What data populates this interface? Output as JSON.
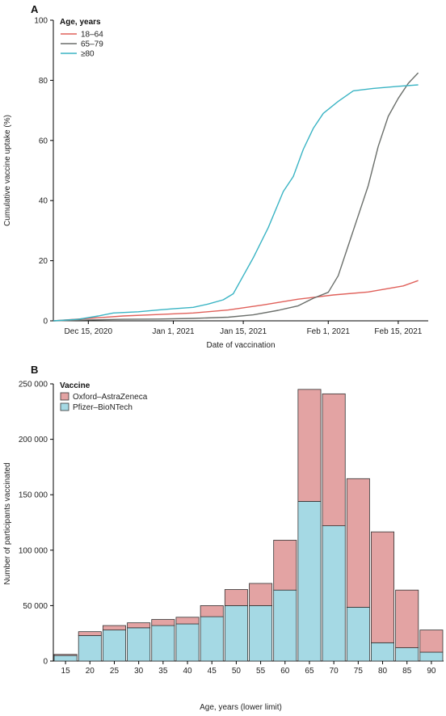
{
  "chart_data": [
    {
      "panel": "A",
      "type": "line",
      "xlabel": "Date of vaccination",
      "ylabel": "Cumulative vaccine uptake (%)",
      "xlim": [
        "2020-12-08",
        "2021-02-21"
      ],
      "ylim": [
        0,
        100
      ],
      "x_ticks": [
        {
          "date": "2020-12-15",
          "label": "Dec 15, 2020"
        },
        {
          "date": "2021-01-01",
          "label": "Jan 1, 2021"
        },
        {
          "date": "2021-01-15",
          "label": "Jan 15, 2021"
        },
        {
          "date": "2021-02-01",
          "label": "Feb 1, 2021"
        },
        {
          "date": "2021-02-15",
          "label": "Feb 15, 2021"
        }
      ],
      "y_ticks": [
        0,
        20,
        40,
        60,
        80,
        100
      ],
      "legend": {
        "title": "Age, years",
        "position": "top-left"
      },
      "series": [
        {
          "name": "18–64",
          "color": "#e0605a",
          "points": [
            [
              "2020-12-08",
              0
            ],
            [
              "2020-12-15",
              0.8
            ],
            [
              "2020-12-22",
              1.6
            ],
            [
              "2020-12-29",
              2.1
            ],
            [
              "2021-01-05",
              2.6
            ],
            [
              "2021-01-12",
              3.6
            ],
            [
              "2021-01-19",
              5.3
            ],
            [
              "2021-01-26",
              7.2
            ],
            [
              "2021-02-02",
              8.6
            ],
            [
              "2021-02-09",
              9.6
            ],
            [
              "2021-02-16",
              11.6
            ],
            [
              "2021-02-19",
              13.4
            ]
          ]
        },
        {
          "name": "65–79",
          "color": "#6b6f6b",
          "points": [
            [
              "2020-12-08",
              0
            ],
            [
              "2020-12-15",
              0.3
            ],
            [
              "2020-12-22",
              0.5
            ],
            [
              "2020-12-29",
              0.6
            ],
            [
              "2021-01-05",
              0.8
            ],
            [
              "2021-01-12",
              1.2
            ],
            [
              "2021-01-17",
              2
            ],
            [
              "2021-01-22",
              3.5
            ],
            [
              "2021-01-26",
              5
            ],
            [
              "2021-01-29",
              7.5
            ],
            [
              "2021-02-01",
              9.5
            ],
            [
              "2021-02-03",
              15
            ],
            [
              "2021-02-05",
              25
            ],
            [
              "2021-02-07",
              35
            ],
            [
              "2021-02-09",
              45
            ],
            [
              "2021-02-11",
              58
            ],
            [
              "2021-02-13",
              68
            ],
            [
              "2021-02-15",
              74
            ],
            [
              "2021-02-17",
              79
            ],
            [
              "2021-02-19",
              82.5
            ]
          ]
        },
        {
          "name": "≥80",
          "color": "#3ab4c4",
          "points": [
            [
              "2020-12-08",
              0
            ],
            [
              "2020-12-13",
              0.5
            ],
            [
              "2020-12-17",
              1.6
            ],
            [
              "2020-12-20",
              2.6
            ],
            [
              "2020-12-25",
              3
            ],
            [
              "2020-12-29",
              3.6
            ],
            [
              "2021-01-01",
              4
            ],
            [
              "2021-01-05",
              4.5
            ],
            [
              "2021-01-08",
              5.6
            ],
            [
              "2021-01-11",
              7
            ],
            [
              "2021-01-13",
              9
            ],
            [
              "2021-01-15",
              15
            ],
            [
              "2021-01-17",
              21
            ],
            [
              "2021-01-20",
              31
            ],
            [
              "2021-01-23",
              43
            ],
            [
              "2021-01-25",
              48
            ],
            [
              "2021-01-27",
              57
            ],
            [
              "2021-01-29",
              64
            ],
            [
              "2021-01-31",
              69
            ],
            [
              "2021-02-03",
              73
            ],
            [
              "2021-02-06",
              76.5
            ],
            [
              "2021-02-10",
              77.3
            ],
            [
              "2021-02-15",
              78
            ],
            [
              "2021-02-19",
              78.5
            ]
          ]
        }
      ]
    },
    {
      "panel": "B",
      "type": "bar",
      "stacked": true,
      "xlabel": "Age, years (lower limit)",
      "ylabel": "Number of participants vaccinated",
      "ylim": [
        0,
        250000
      ],
      "y_ticks": [
        {
          "value": 0,
          "label": "0"
        },
        {
          "value": 50000,
          "label": "50 000"
        },
        {
          "value": 100000,
          "label": "100 000"
        },
        {
          "value": 150000,
          "label": "150 000"
        },
        {
          "value": 200000,
          "label": "200 000"
        },
        {
          "value": 250000,
          "label": "250 000"
        }
      ],
      "categories": [
        "15",
        "20",
        "25",
        "30",
        "35",
        "40",
        "45",
        "50",
        "55",
        "60",
        "65",
        "70",
        "75",
        "80",
        "85",
        "90"
      ],
      "legend": {
        "title": "Vaccine",
        "position": "top-left"
      },
      "series": [
        {
          "name": "Pfizer–BioNTech",
          "color": "#a5d9e4",
          "values": [
            5000,
            23000,
            28000,
            30000,
            32000,
            33500,
            40000,
            50000,
            50000,
            64000,
            144000,
            122000,
            48500,
            16500,
            12000,
            8000
          ]
        },
        {
          "name": "Oxford–AstraZeneca",
          "color": "#e3a3a3",
          "values": [
            1000,
            3500,
            4000,
            4500,
            5500,
            6000,
            10000,
            14500,
            20000,
            45000,
            101000,
            119000,
            116000,
            100000,
            52000,
            20000
          ]
        }
      ]
    }
  ]
}
